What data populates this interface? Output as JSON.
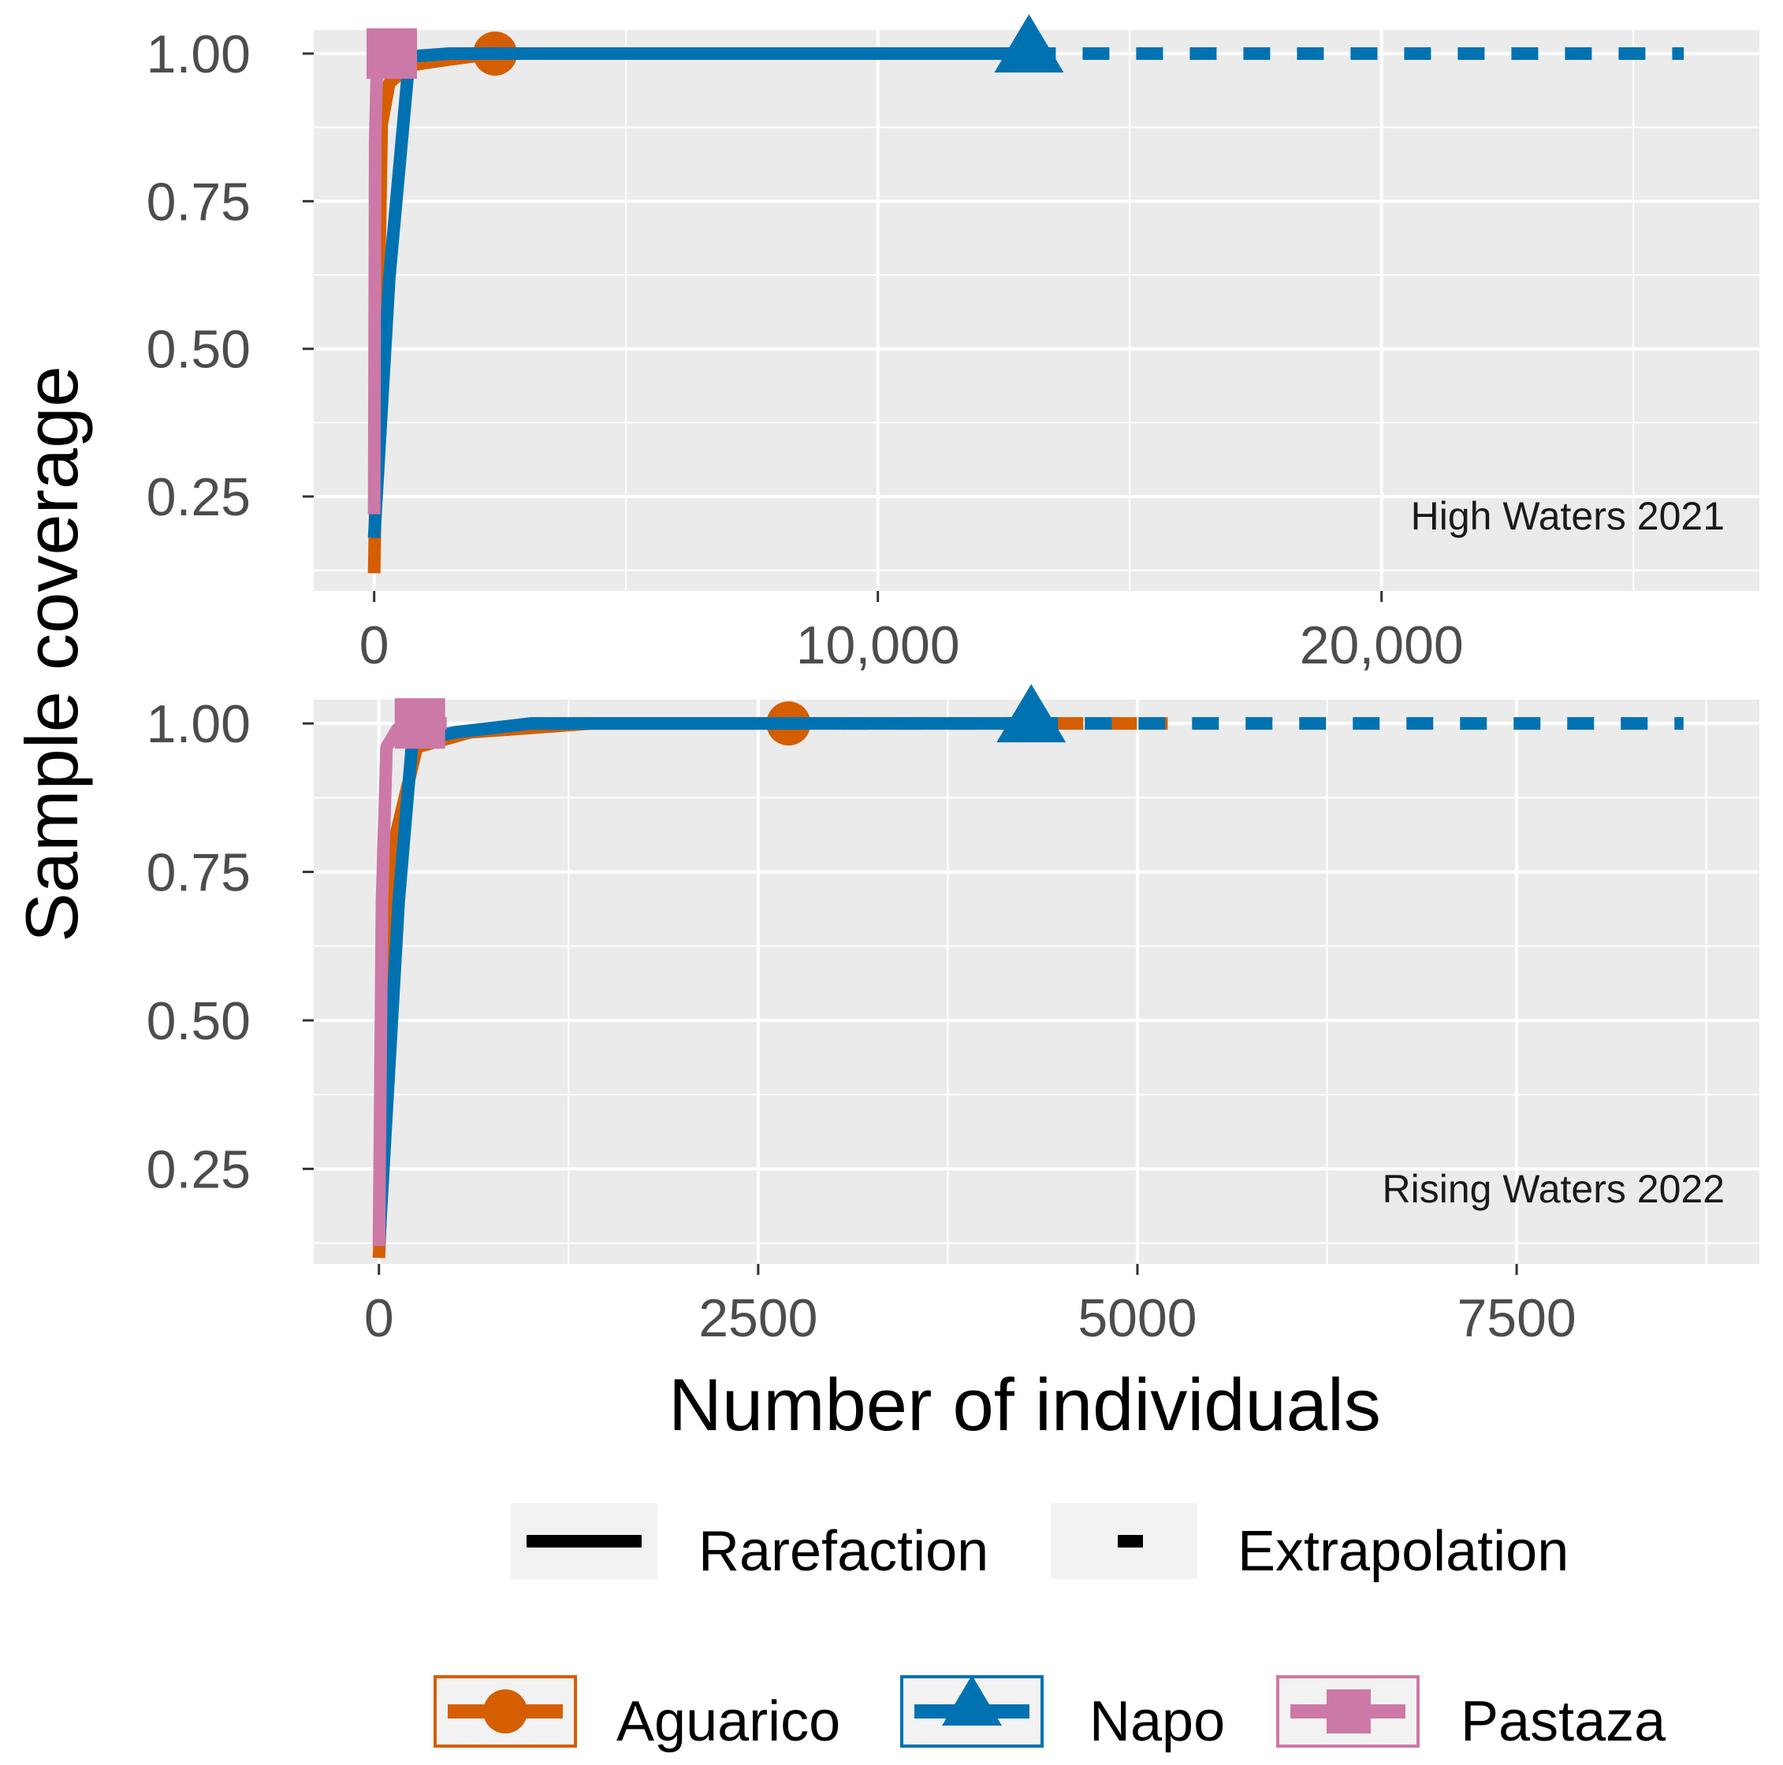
{
  "colors": {
    "Aguarico": "#D55E00",
    "Napo": "#0072B2",
    "Pastaza": "#CC79A7",
    "panel_background": "#EBEBEB",
    "grid": "#FFFFFF",
    "legend_key_background": "#F2F2F2"
  },
  "chart_data": [
    {
      "type": "line",
      "panel_label": "High Waters 2021",
      "xlabel": "Number of individuals",
      "ylabel": "Sample coverage",
      "xlim": [
        -1200,
        27500
      ],
      "ylim": [
        0.09,
        1.04
      ],
      "x_ticks": [
        0,
        10000,
        20000
      ],
      "x_tick_labels": [
        "0",
        "10,000",
        "20,000"
      ],
      "y_ticks": [
        0.25,
        0.5,
        0.75,
        1.0
      ],
      "y_tick_labels": [
        "0.25",
        "0.50",
        "0.75",
        "1.00"
      ],
      "grid": true,
      "series": [
        {
          "name": "Aguarico",
          "marker": "circle",
          "rarefaction": [
            [
              0,
              0.12
            ],
            [
              150,
              0.88
            ],
            [
              300,
              0.95
            ],
            [
              700,
              0.98
            ],
            [
              1500,
              0.99
            ],
            [
              2400,
              1.0
            ]
          ],
          "observed": [
            2400,
            1.0
          ],
          "extrapolation": [
            [
              2400,
              1.0
            ],
            [
              4800,
              1.0
            ]
          ]
        },
        {
          "name": "Napo",
          "marker": "triangle",
          "rarefaction": [
            [
              0,
              0.18
            ],
            [
              300,
              0.62
            ],
            [
              700,
              0.995
            ],
            [
              1500,
              1.0
            ],
            [
              13000,
              1.0
            ]
          ],
          "observed": [
            13000,
            1.0
          ],
          "extrapolation": [
            [
              13000,
              1.0
            ],
            [
              26000,
              1.0
            ]
          ]
        },
        {
          "name": "Pastaza",
          "marker": "square",
          "rarefaction": [
            [
              0,
              0.22
            ],
            [
              20,
              0.85
            ],
            [
              50,
              0.96
            ],
            [
              150,
              1.0
            ],
            [
              350,
              1.0
            ]
          ],
          "observed": [
            350,
            1.0
          ],
          "extrapolation": [
            [
              350,
              1.0
            ],
            [
              700,
              1.0
            ]
          ]
        }
      ]
    },
    {
      "type": "line",
      "panel_label": "Rising Waters 2022",
      "xlabel": "Number of individuals",
      "ylabel": "Sample coverage",
      "xlim": [
        -430,
        9100
      ],
      "ylim": [
        0.09,
        1.04
      ],
      "x_ticks": [
        0,
        2500,
        5000,
        7500
      ],
      "x_tick_labels": [
        "0",
        "2500",
        "5000",
        "7500"
      ],
      "y_ticks": [
        0.25,
        0.5,
        0.75,
        1.0
      ],
      "y_tick_labels": [
        "0.25",
        "0.50",
        "0.75",
        "1.00"
      ],
      "grid": true,
      "series": [
        {
          "name": "Aguarico",
          "marker": "circle",
          "rarefaction": [
            [
              0,
              0.1
            ],
            [
              100,
              0.8
            ],
            [
              250,
              0.96
            ],
            [
              600,
              0.985
            ],
            [
              1400,
              1.0
            ],
            [
              2700,
              1.0
            ]
          ],
          "observed": [
            2700,
            1.0
          ],
          "extrapolation": [
            [
              2700,
              1.0
            ],
            [
              5200,
              1.0
            ]
          ]
        },
        {
          "name": "Napo",
          "marker": "triangle",
          "rarefaction": [
            [
              0,
              0.12
            ],
            [
              130,
              0.7
            ],
            [
              220,
              0.97
            ],
            [
              500,
              0.985
            ],
            [
              1000,
              1.0
            ],
            [
              4300,
              1.0
            ]
          ],
          "observed": [
            4300,
            1.0
          ],
          "extrapolation": [
            [
              4300,
              1.0
            ],
            [
              8600,
              1.0
            ]
          ]
        },
        {
          "name": "Pastaza",
          "marker": "square",
          "rarefaction": [
            [
              0,
              0.12
            ],
            [
              20,
              0.7
            ],
            [
              50,
              0.96
            ],
            [
              120,
              0.99
            ],
            [
              270,
              1.0
            ]
          ],
          "observed": [
            270,
            1.0
          ],
          "extrapolation": [
            [
              270,
              1.0
            ],
            [
              540,
              1.0
            ]
          ]
        }
      ]
    }
  ],
  "legend": {
    "method": [
      "Rarefaction",
      "Extrapolation"
    ],
    "groups": [
      "Aguarico",
      "Napo",
      "Pastaza"
    ]
  }
}
